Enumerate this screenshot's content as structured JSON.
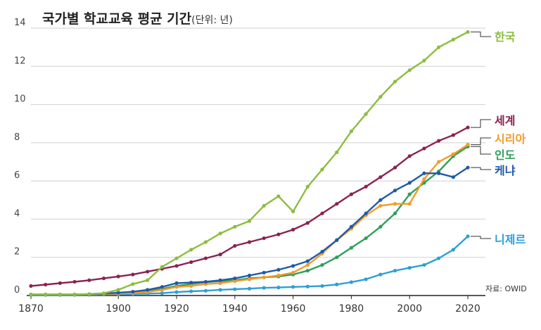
{
  "chart_data": {
    "type": "line",
    "title": "국가별 학교교육 평균 기간",
    "unit_label": "(단위: 년)",
    "source": "자료: OWID",
    "xlabel": "",
    "ylabel": "",
    "xlim": [
      1870,
      2020
    ],
    "ylim": [
      0,
      14
    ],
    "x_ticks": [
      1870,
      1900,
      1920,
      1940,
      1960,
      1980,
      2000,
      2020
    ],
    "y_ticks": [
      0,
      2,
      4,
      6,
      8,
      10,
      12,
      14
    ],
    "grid": true,
    "series": [
      {
        "name": "한국",
        "color": "#8cbd3f",
        "x": [
          1870,
          1875,
          1880,
          1885,
          1890,
          1895,
          1900,
          1905,
          1910,
          1915,
          1920,
          1925,
          1930,
          1935,
          1940,
          1945,
          1950,
          1955,
          1960,
          1965,
          1970,
          1975,
          1980,
          1985,
          1990,
          1995,
          2000,
          2005,
          2010,
          2015,
          2020
        ],
        "values": [
          0.05,
          0.05,
          0.05,
          0.05,
          0.08,
          0.12,
          0.3,
          0.6,
          0.8,
          1.5,
          1.95,
          2.4,
          2.8,
          3.25,
          3.6,
          3.9,
          4.7,
          5.2,
          4.4,
          5.7,
          6.6,
          7.5,
          8.6,
          9.5,
          10.4,
          11.2,
          11.8,
          12.3,
          13.0,
          13.4,
          13.8
        ]
      },
      {
        "name": "세계",
        "color": "#8b2252",
        "x": [
          1870,
          1875,
          1880,
          1885,
          1890,
          1895,
          1900,
          1905,
          1910,
          1915,
          1920,
          1925,
          1930,
          1935,
          1940,
          1945,
          1950,
          1955,
          1960,
          1965,
          1970,
          1975,
          1980,
          1985,
          1990,
          1995,
          2000,
          2005,
          2010,
          2015,
          2020
        ],
        "values": [
          0.5,
          0.57,
          0.65,
          0.72,
          0.8,
          0.9,
          1.0,
          1.1,
          1.25,
          1.4,
          1.55,
          1.75,
          1.95,
          2.15,
          2.6,
          2.8,
          3.0,
          3.2,
          3.45,
          3.8,
          4.3,
          4.8,
          5.3,
          5.7,
          6.2,
          6.7,
          7.3,
          7.7,
          8.1,
          8.4,
          8.8
        ]
      },
      {
        "name": "시리아",
        "color": "#f39a2a",
        "x": [
          1870,
          1875,
          1880,
          1885,
          1890,
          1895,
          1900,
          1905,
          1910,
          1915,
          1920,
          1925,
          1930,
          1935,
          1940,
          1945,
          1950,
          1955,
          1960,
          1965,
          1970,
          1975,
          1980,
          1985,
          1990,
          1995,
          2000,
          2005,
          2010,
          2015,
          2020
        ],
        "values": [
          0.05,
          0.05,
          0.05,
          0.05,
          0.06,
          0.08,
          0.1,
          0.13,
          0.18,
          0.3,
          0.45,
          0.5,
          0.6,
          0.65,
          0.75,
          0.85,
          0.95,
          1.05,
          1.2,
          1.6,
          2.2,
          2.9,
          3.5,
          4.2,
          4.7,
          4.8,
          4.8,
          6.1,
          7.0,
          7.4,
          7.9
        ]
      },
      {
        "name": "인도",
        "color": "#2e9f5a",
        "x": [
          1870,
          1875,
          1880,
          1885,
          1890,
          1895,
          1900,
          1905,
          1910,
          1915,
          1920,
          1925,
          1930,
          1935,
          1940,
          1945,
          1950,
          1955,
          1960,
          1965,
          1970,
          1975,
          1980,
          1985,
          1990,
          1995,
          2000,
          2005,
          2010,
          2015,
          2020
        ],
        "values": [
          0.05,
          0.05,
          0.05,
          0.05,
          0.06,
          0.08,
          0.12,
          0.18,
          0.25,
          0.35,
          0.5,
          0.6,
          0.7,
          0.75,
          0.8,
          0.9,
          0.95,
          1.0,
          1.1,
          1.3,
          1.6,
          2.0,
          2.5,
          3.0,
          3.6,
          4.3,
          5.3,
          5.9,
          6.5,
          7.3,
          7.8
        ]
      },
      {
        "name": "케냐",
        "color": "#1f5aa8",
        "x": [
          1870,
          1875,
          1880,
          1885,
          1890,
          1895,
          1900,
          1905,
          1910,
          1915,
          1920,
          1925,
          1930,
          1935,
          1940,
          1945,
          1950,
          1955,
          1960,
          1965,
          1970,
          1975,
          1980,
          1985,
          1990,
          1995,
          2000,
          2005,
          2010,
          2015,
          2020
        ],
        "values": [
          0.05,
          0.05,
          0.05,
          0.05,
          0.07,
          0.1,
          0.15,
          0.2,
          0.3,
          0.45,
          0.65,
          0.68,
          0.72,
          0.8,
          0.9,
          1.05,
          1.2,
          1.35,
          1.55,
          1.8,
          2.3,
          2.9,
          3.6,
          4.3,
          5.0,
          5.5,
          5.9,
          6.4,
          6.4,
          6.2,
          6.7
        ]
      },
      {
        "name": "니제르",
        "color": "#2d9fd6",
        "x": [
          1870,
          1875,
          1880,
          1885,
          1890,
          1895,
          1900,
          1905,
          1910,
          1915,
          1920,
          1925,
          1930,
          1935,
          1940,
          1945,
          1950,
          1955,
          1960,
          1965,
          1970,
          1975,
          1980,
          1985,
          1990,
          1995,
          2000,
          2005,
          2010,
          2015,
          2020
        ],
        "values": [
          0.03,
          0.03,
          0.03,
          0.03,
          0.04,
          0.05,
          0.06,
          0.08,
          0.1,
          0.12,
          0.18,
          0.22,
          0.25,
          0.3,
          0.33,
          0.36,
          0.4,
          0.42,
          0.45,
          0.47,
          0.5,
          0.58,
          0.7,
          0.85,
          1.1,
          1.3,
          1.45,
          1.6,
          1.95,
          2.4,
          3.1
        ]
      }
    ]
  }
}
